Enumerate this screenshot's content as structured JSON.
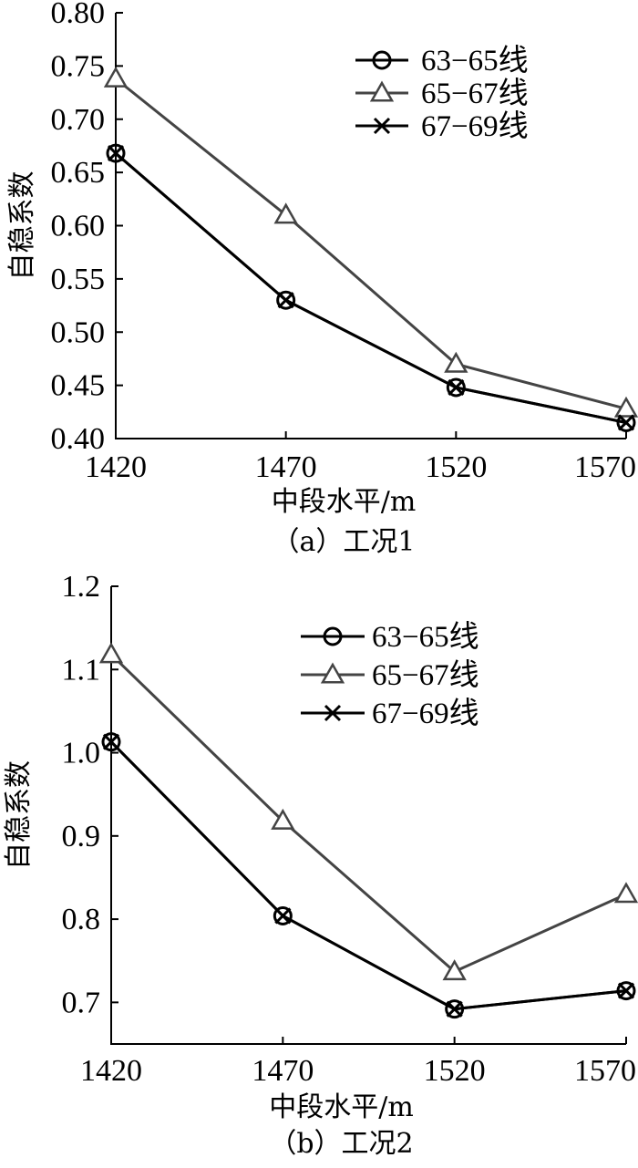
{
  "chart_data": [
    {
      "type": "line",
      "caption": "（a）工况1",
      "xlabel": "中段水平/m",
      "ylabel": "自稳系数",
      "x": [
        1420,
        1470,
        1520,
        1570
      ],
      "xticks": [
        "1420",
        "1470",
        "1520",
        "1570"
      ],
      "yticks": [
        "0.40",
        "0.45",
        "0.50",
        "0.55",
        "0.60",
        "0.65",
        "0.70",
        "0.75",
        "0.80"
      ],
      "ylim": [
        0.4,
        0.8
      ],
      "legend_position": "top-right",
      "series": [
        {
          "name": "63−65线",
          "marker": "circle",
          "color": "#000000",
          "values": [
            0.668,
            0.53,
            0.448,
            0.415
          ]
        },
        {
          "name": "65−67线",
          "marker": "triangle",
          "color": "#444444",
          "values": [
            0.738,
            0.61,
            0.47,
            0.428
          ]
        },
        {
          "name": "67−69线",
          "marker": "x",
          "color": "#000000",
          "values": [
            0.668,
            0.53,
            0.448,
            0.415
          ]
        }
      ]
    },
    {
      "type": "line",
      "caption": "（b）工况2",
      "xlabel": "中段水平/m",
      "ylabel": "自稳系数",
      "x": [
        1420,
        1470,
        1520,
        1570
      ],
      "xticks": [
        "1420",
        "1470",
        "1520",
        "1570"
      ],
      "yticks": [
        "0.7",
        "0.8",
        "0.9",
        "1.0",
        "1.1",
        "1.2"
      ],
      "ylim": [
        0.65,
        1.2
      ],
      "legend_position": "top-right",
      "series": [
        {
          "name": "63−65线",
          "marker": "circle",
          "color": "#000000",
          "values": [
            1.013,
            0.804,
            0.692,
            0.714
          ]
        },
        {
          "name": "65−67线",
          "marker": "triangle",
          "color": "#444444",
          "values": [
            1.118,
            0.918,
            0.737,
            0.83
          ]
        },
        {
          "name": "67−69线",
          "marker": "x",
          "color": "#000000",
          "values": [
            1.013,
            0.804,
            0.692,
            0.714
          ]
        }
      ]
    }
  ]
}
